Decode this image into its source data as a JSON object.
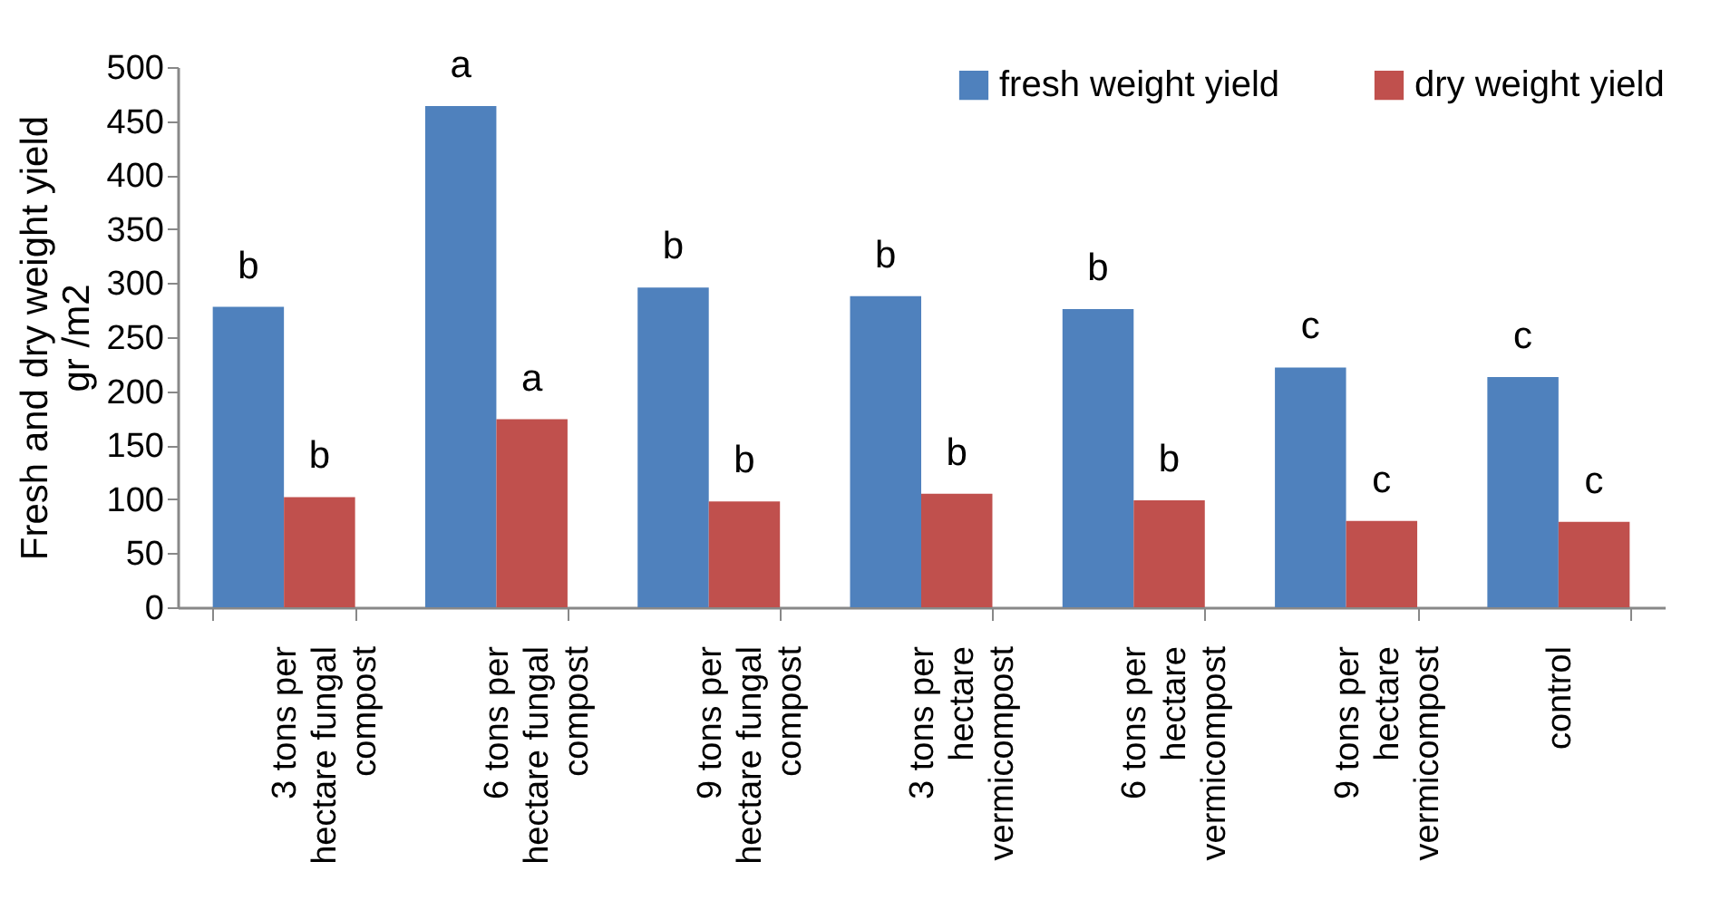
{
  "chart_data": {
    "type": "bar",
    "ylabel": "Fresh and dry weight yield gr /m2",
    "categories": [
      "3 tons per hectare fungal compost",
      "6 tons per hectare fungal compost",
      "9 tons per hectare fungal compost",
      "3 tons per hectare vermicompost",
      "6 tons per hectare vermicompost",
      "9 tons per hectare vermicompost",
      "control"
    ],
    "series": [
      {
        "name": "fresh weight yield",
        "color": "#4f81bd",
        "values": [
          278,
          464,
          296,
          288,
          276,
          222,
          213
        ],
        "value_labels": [
          "b",
          "a",
          "b",
          "b",
          "b",
          "c",
          "c"
        ]
      },
      {
        "name": "dry weight yield",
        "color": "#c0504d",
        "values": [
          102,
          174,
          98,
          105,
          99,
          80,
          79
        ],
        "value_labels": [
          "b",
          "a",
          "b",
          "b",
          "b",
          "c",
          "c"
        ]
      }
    ],
    "ylim": [
      0,
      500
    ],
    "yticks": [
      0,
      50,
      100,
      150,
      200,
      250,
      300,
      350,
      400,
      450,
      500
    ],
    "grid": false,
    "legend": "top right"
  }
}
